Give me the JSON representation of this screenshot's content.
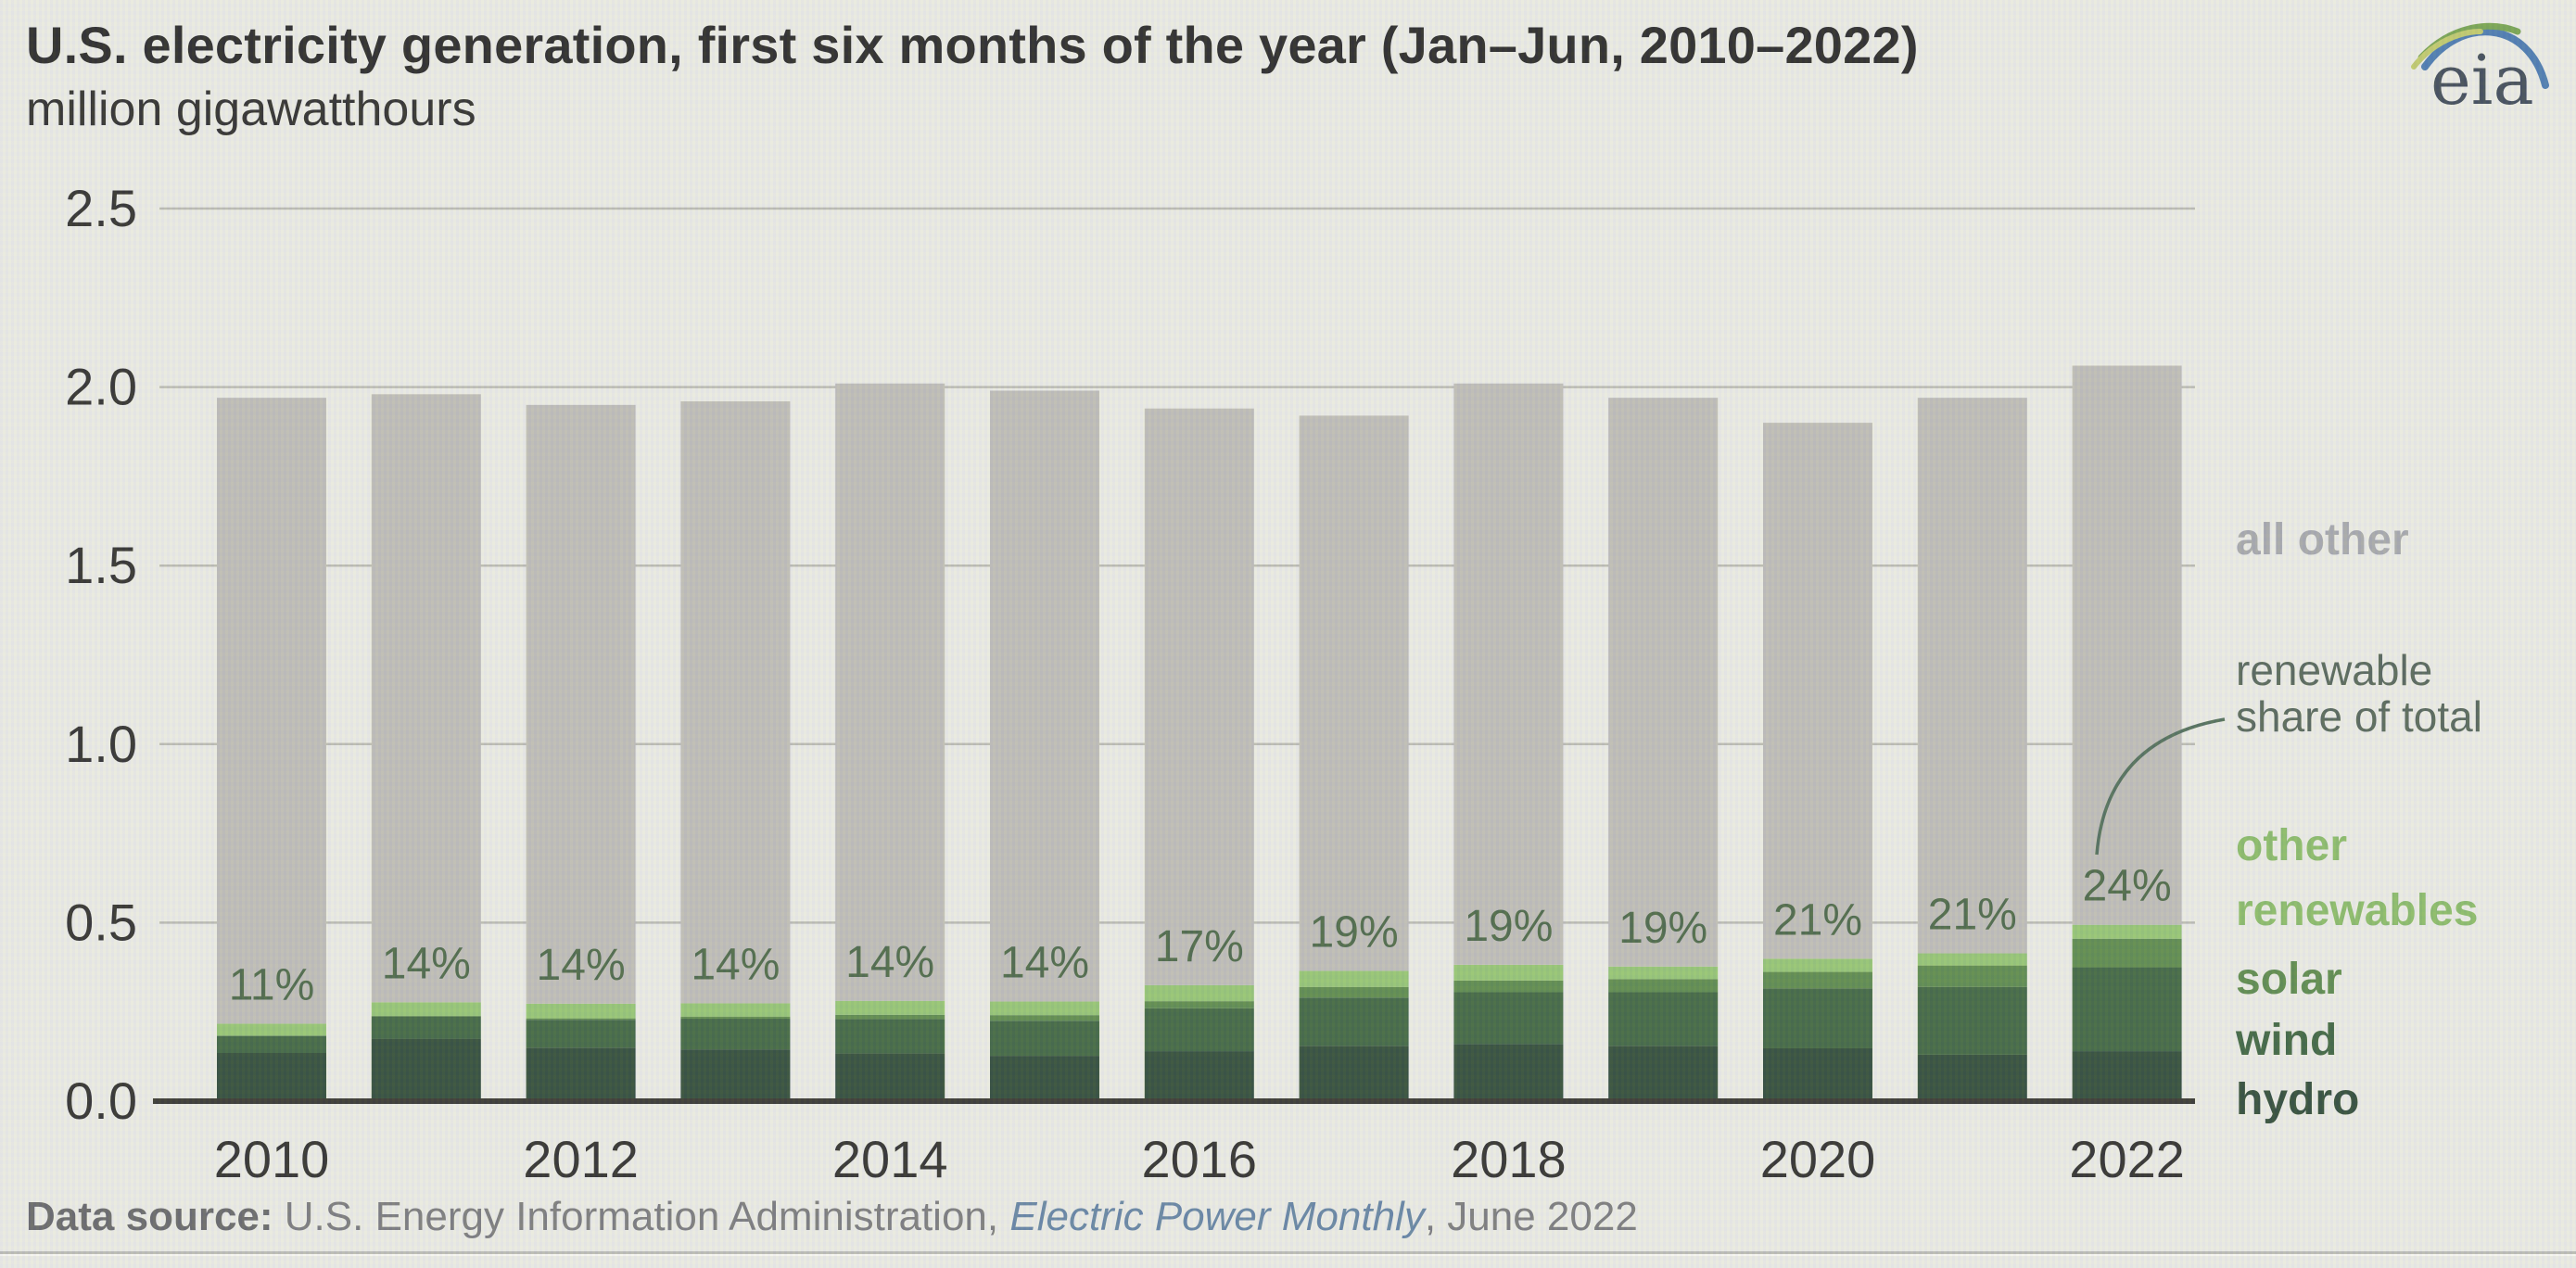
{
  "header": {
    "title": "U.S. electricity generation, first six months of the year (Jan–Jun, 2010–2022)",
    "subtitle": "million gigawatthours"
  },
  "logo": {
    "text": "eia"
  },
  "chart_data": {
    "type": "bar",
    "stacked": true,
    "title": "U.S. electricity generation, first six months of the year (Jan–Jun, 2010–2022)",
    "ylabel": "million gigawatthours",
    "xlabel": "",
    "ylim": [
      0,
      2.5
    ],
    "yticks": [
      "0.0",
      "0.5",
      "1.0",
      "1.5",
      "2.0",
      "2.5"
    ],
    "grid": true,
    "legend_position": "right",
    "categories": [
      "2010",
      "2011",
      "2012",
      "2013",
      "2014",
      "2015",
      "2016",
      "2017",
      "2018",
      "2019",
      "2020",
      "2021",
      "2022"
    ],
    "xtick_labels": [
      "2010",
      "2012",
      "2014",
      "2016",
      "2018",
      "2020",
      "2022"
    ],
    "series": [
      {
        "name": "hydro",
        "color": "#1e3c27",
        "values": [
          0.135,
          0.175,
          0.15,
          0.145,
          0.134,
          0.127,
          0.14,
          0.155,
          0.16,
          0.155,
          0.148,
          0.13,
          0.14
        ]
      },
      {
        "name": "wind",
        "color": "#2e5830",
        "values": [
          0.047,
          0.062,
          0.078,
          0.086,
          0.096,
          0.098,
          0.12,
          0.135,
          0.145,
          0.15,
          0.168,
          0.19,
          0.235
        ]
      },
      {
        "name": "solar",
        "color": "#4d7f3c",
        "values": [
          0.002,
          0.002,
          0.004,
          0.006,
          0.012,
          0.016,
          0.02,
          0.03,
          0.033,
          0.037,
          0.046,
          0.06,
          0.08
        ]
      },
      {
        "name": "other renewables",
        "color": "#8abf66",
        "values": [
          0.033,
          0.038,
          0.041,
          0.037,
          0.039,
          0.038,
          0.045,
          0.045,
          0.044,
          0.035,
          0.037,
          0.034,
          0.039
        ]
      },
      {
        "name": "all other",
        "color": "#b7b6b0",
        "values": [
          1.753,
          1.703,
          1.677,
          1.686,
          1.729,
          1.711,
          1.615,
          1.555,
          1.628,
          1.593,
          1.501,
          1.556,
          1.566
        ]
      }
    ],
    "totals": [
      1.97,
      1.98,
      1.95,
      1.96,
      2.01,
      1.99,
      1.94,
      1.92,
      2.01,
      1.97,
      1.9,
      1.97,
      2.06
    ],
    "renewable_share_labels": [
      "11%",
      "14%",
      "14%",
      "14%",
      "14%",
      "14%",
      "17%",
      "19%",
      "19%",
      "19%",
      "21%",
      "21%",
      "24%"
    ]
  },
  "legend": {
    "all_other": {
      "label": "all other",
      "color": "#9d9fa3"
    },
    "share_line1": "renewable",
    "share_line2": "share of total",
    "share_color": "#46584a",
    "other_renew_line1": "other",
    "other_renew_line2": "renewables",
    "other_renew_color": "#7eb45a",
    "solar": {
      "label": "solar",
      "color": "#4d7f3c"
    },
    "wind": {
      "label": "wind",
      "color": "#2d5730"
    },
    "hydro": {
      "label": "hydro",
      "color": "#1e3c27"
    }
  },
  "footer": {
    "source_bold": "Data source:",
    "source_regular": " U.S. Energy Information Administration, ",
    "source_italic": "Electric Power Monthly",
    "source_suffix": ", June 2022"
  }
}
